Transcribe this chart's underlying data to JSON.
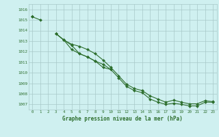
{
  "x": [
    0,
    1,
    2,
    3,
    4,
    5,
    6,
    7,
    8,
    9,
    10,
    11,
    12,
    13,
    14,
    15,
    16,
    17,
    18,
    19,
    20,
    21,
    22,
    23
  ],
  "line1": [
    1015.3,
    1015.0,
    null,
    1013.7,
    1013.1,
    1012.6,
    1011.8,
    1011.5,
    1011.1,
    1010.5,
    1010.3,
    null,
    null,
    null,
    null,
    null,
    null,
    null,
    null,
    null,
    null,
    null,
    null,
    null
  ],
  "line2": [
    1015.3,
    null,
    null,
    1013.7,
    1013.1,
    1012.2,
    1011.8,
    1011.5,
    1011.1,
    1010.8,
    1010.3,
    1009.5,
    1008.7,
    1008.3,
    1008.1,
    1007.5,
    1007.2,
    1007.0,
    1007.1,
    1007.0,
    1006.85,
    1006.85,
    1007.2,
    1007.2
  ],
  "line3": [
    1015.3,
    null,
    null,
    1013.7,
    1013.1,
    1012.7,
    1012.5,
    1012.2,
    1011.8,
    1011.2,
    1010.5,
    1009.7,
    1008.9,
    1008.5,
    1008.3,
    1007.8,
    1007.5,
    1007.2,
    1007.4,
    1007.2,
    1007.05,
    1007.05,
    1007.35,
    1007.25
  ],
  "xlabel": "Graphe pression niveau de la mer (hPa)",
  "ylim": [
    1006.5,
    1016.5
  ],
  "xlim": [
    -0.5,
    23.5
  ],
  "yticks": [
    1007,
    1008,
    1009,
    1010,
    1011,
    1012,
    1013,
    1014,
    1015,
    1016
  ],
  "xticks": [
    0,
    1,
    2,
    3,
    4,
    5,
    6,
    7,
    8,
    9,
    10,
    11,
    12,
    13,
    14,
    15,
    16,
    17,
    18,
    19,
    20,
    21,
    22,
    23
  ],
  "line_color": "#2d6e2d",
  "bg_color": "#cff0f0",
  "grid_color": "#a8c8c8",
  "marker": "D",
  "marker_size": 2.0,
  "line_width": 0.8
}
